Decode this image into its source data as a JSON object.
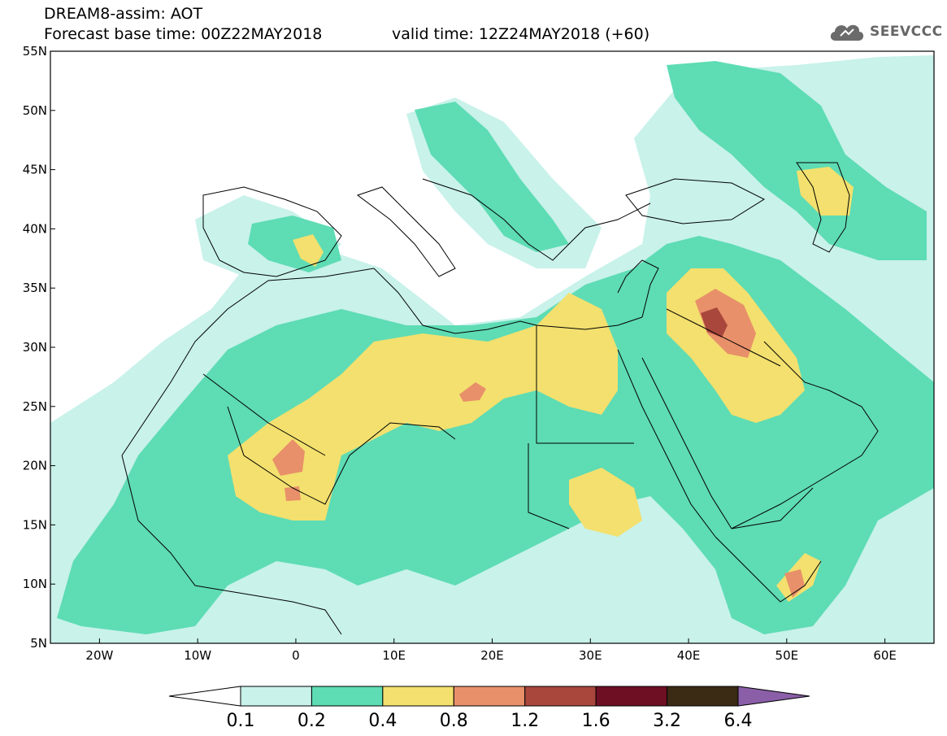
{
  "header": {
    "model": "DREAM8-assim: AOT",
    "base_time": "Forecast base time: 00Z22MAY2018",
    "valid_time": "valid time: 12Z24MAY2018 (+60)",
    "logo_text": "SEEVCCC"
  },
  "map": {
    "lat_labels": [
      "55N",
      "50N",
      "45N",
      "40N",
      "35N",
      "30N",
      "25N",
      "20N",
      "15N",
      "10N",
      "5N"
    ],
    "lon_labels": [
      "20W",
      "10W",
      "0",
      "10E",
      "20E",
      "30E",
      "40E",
      "50E",
      "60E"
    ],
    "lat_range": [
      5,
      55
    ],
    "lon_range": [
      -25,
      65
    ]
  },
  "colorbar": {
    "labels": [
      "0.1",
      "0.2",
      "0.4",
      "0.8",
      "1.2",
      "1.6",
      "3.2",
      "6.4"
    ],
    "colors": [
      "#c8f2ea",
      "#5edcb4",
      "#f3e06e",
      "#e8906a",
      "#a9473c",
      "#6e0f24",
      "#3b2a14"
    ],
    "low_color": "#ffffff",
    "high_color": "#8a5fa8"
  }
}
